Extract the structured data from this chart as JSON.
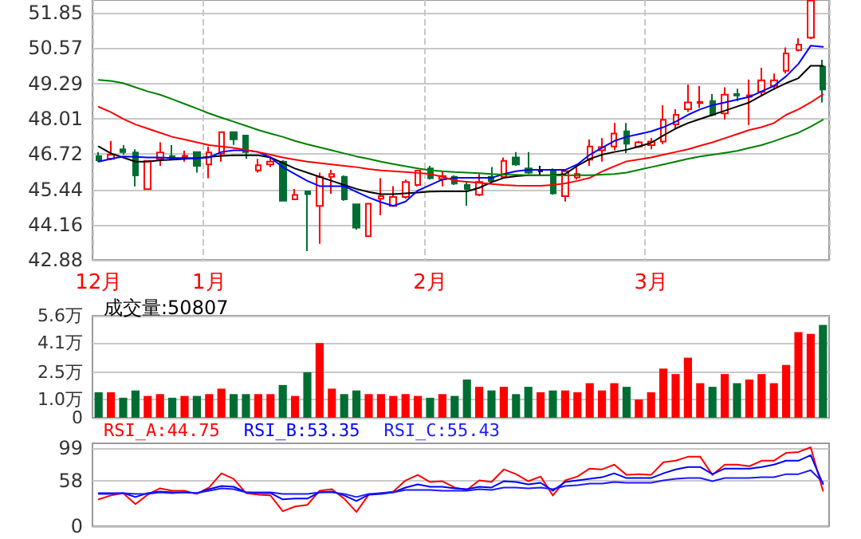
{
  "chart_data": [
    {
      "type": "candlestick",
      "categories": [
        "12月",
        null,
        null,
        null,
        null,
        null,
        null,
        null,
        null,
        "1月",
        null,
        null,
        null,
        null,
        null,
        null,
        null,
        null,
        null,
        null,
        null,
        null,
        null,
        null,
        null,
        null,
        null,
        "2月",
        null,
        null,
        null,
        null,
        null,
        null,
        null,
        null,
        null,
        null,
        null,
        null,
        null,
        null,
        null,
        null,
        null,
        "3月",
        null,
        null,
        null,
        null,
        null,
        null,
        null,
        null,
        null,
        null,
        null,
        null,
        null,
        null
      ],
      "ohlc": [
        [
          46.65,
          46.8,
          46.45,
          46.5
        ],
        [
          46.55,
          47.2,
          46.5,
          46.7
        ],
        [
          46.9,
          47.05,
          46.7,
          46.8
        ],
        [
          46.78,
          46.9,
          45.55,
          45.95
        ],
        [
          45.45,
          46.5,
          45.45,
          46.48
        ],
        [
          46.55,
          47.15,
          46.3,
          46.78
        ],
        [
          46.65,
          47.05,
          46.5,
          46.55
        ],
        [
          46.6,
          46.85,
          46.45,
          46.66
        ],
        [
          46.8,
          46.8,
          46.05,
          46.3
        ],
        [
          46.35,
          47.0,
          45.85,
          46.78
        ],
        [
          46.74,
          47.52,
          46.45,
          47.52
        ],
        [
          47.52,
          47.52,
          47.06,
          47.26
        ],
        [
          47.4,
          47.4,
          46.55,
          46.8
        ],
        [
          46.13,
          46.55,
          46.05,
          46.32
        ],
        [
          46.35,
          46.65,
          46.25,
          46.45
        ],
        [
          46.45,
          46.5,
          45.03,
          45.03
        ],
        [
          45.08,
          45.46,
          45.08,
          45.24
        ],
        [
          45.37,
          45.37,
          43.2,
          45.27
        ],
        [
          44.84,
          46.05,
          43.47,
          45.9
        ],
        [
          45.9,
          46.15,
          45.28,
          46.0
        ],
        [
          45.9,
          45.95,
          45.03,
          45.08
        ],
        [
          44.9,
          44.9,
          43.98,
          44.05
        ],
        [
          43.74,
          44.92,
          43.74,
          44.92
        ],
        [
          45.1,
          45.85,
          44.5,
          45.2
        ],
        [
          44.84,
          45.56,
          44.84,
          45.17
        ],
        [
          45.17,
          45.8,
          45.1,
          45.71
        ],
        [
          45.6,
          46.14,
          45.55,
          46.12
        ],
        [
          46.2,
          46.3,
          45.8,
          45.85
        ],
        [
          45.82,
          46.1,
          45.55,
          45.93
        ],
        [
          45.9,
          45.95,
          45.6,
          45.65
        ],
        [
          45.6,
          45.7,
          44.85,
          45.46
        ],
        [
          45.25,
          46.0,
          45.2,
          45.71
        ],
        [
          45.9,
          46.25,
          45.7,
          45.75
        ],
        [
          45.9,
          46.6,
          45.85,
          46.48
        ],
        [
          46.6,
          46.8,
          46.3,
          46.35
        ],
        [
          46.2,
          46.8,
          46.0,
          46.05
        ],
        [
          46.1,
          46.3,
          45.98,
          46.1
        ],
        [
          46.1,
          46.2,
          45.25,
          45.3
        ],
        [
          45.2,
          46.15,
          45.0,
          46.1
        ],
        [
          45.88,
          46.25,
          45.8,
          46.0
        ],
        [
          46.52,
          47.25,
          46.3,
          47.0
        ],
        [
          46.86,
          47.3,
          46.45,
          46.98
        ],
        [
          47.0,
          47.85,
          46.86,
          47.47
        ],
        [
          47.55,
          47.85,
          46.76,
          47.1
        ],
        [
          47.0,
          47.2,
          46.95,
          47.15
        ],
        [
          47.05,
          47.31,
          46.9,
          47.18
        ],
        [
          47.18,
          48.5,
          47.08,
          47.97
        ],
        [
          47.8,
          48.35,
          47.65,
          48.15
        ],
        [
          48.35,
          49.25,
          48.25,
          48.6
        ],
        [
          48.58,
          49.2,
          48.4,
          48.62
        ],
        [
          48.65,
          48.9,
          48.1,
          48.15
        ],
        [
          48.2,
          49.15,
          47.98,
          48.88
        ],
        [
          48.9,
          49.1,
          48.65,
          48.85
        ],
        [
          48.8,
          49.43,
          47.78,
          48.86
        ],
        [
          48.98,
          49.86,
          48.86,
          49.4
        ],
        [
          49.2,
          49.65,
          49.06,
          49.4
        ],
        [
          49.75,
          50.6,
          49.65,
          50.38
        ],
        [
          50.5,
          50.93,
          50.45,
          50.7
        ],
        [
          50.95,
          52.3,
          50.9,
          52.3
        ],
        [
          49.9,
          50.15,
          48.6,
          49.07
        ]
      ],
      "colors": [
        "#006e33",
        "#ff0000",
        "#006e33",
        "#006e33",
        "#ff0000",
        "#ff0000",
        "#006e33",
        "#ff0000",
        "#006e33",
        "#ff0000",
        "#ff0000",
        "#006e33",
        "#006e33",
        "#ff0000",
        "#ff0000",
        "#006e33",
        "#ff0000",
        "#006e33",
        "#ff0000",
        "#ff0000",
        "#006e33",
        "#006e33",
        "#ff0000",
        "#ff0000",
        "#ff0000",
        "#ff0000",
        "#ff0000",
        "#006e33",
        "#ff0000",
        "#006e33",
        "#006e33",
        "#ff0000",
        "#006e33",
        "#ff0000",
        "#006e33",
        "#006e33",
        "#000000",
        "#006e33",
        "#ff0000",
        "#ff0000",
        "#ff0000",
        "#ff0000",
        "#ff0000",
        "#006e33",
        "#ff0000",
        "#ff0000",
        "#ff0000",
        "#ff0000",
        "#ff0000",
        "#ff0000",
        "#006e33",
        "#ff0000",
        "#006e33",
        "#ff0000",
        "#ff0000",
        "#ff0000",
        "#ff0000",
        "#ff0000",
        "#ff0000",
        "#006e33"
      ],
      "series": [
        {
          "type": "line",
          "color": "#000000",
          "values": [
            47.0,
            46.75,
            46.6,
            46.45,
            46.45,
            46.5,
            46.52,
            46.55,
            46.58,
            46.62,
            46.66,
            46.68,
            46.68,
            46.68,
            46.6,
            46.4,
            46.2,
            46.05,
            45.9,
            45.75,
            45.6,
            45.46,
            45.35,
            45.27,
            45.27,
            45.3,
            45.33,
            45.36,
            45.37,
            45.37,
            45.37,
            45.5,
            45.7,
            45.86,
            45.92,
            45.96,
            45.96,
            45.96,
            46.0,
            46.3,
            46.55,
            46.7,
            46.8,
            46.88,
            47.0,
            47.13,
            47.4,
            47.65,
            47.85,
            48.0,
            48.15,
            48.3,
            48.45,
            48.6,
            48.85,
            49.09,
            49.3,
            49.48,
            49.93,
            49.93
          ]
        },
        {
          "type": "line",
          "color": "#0000ff",
          "values": [
            46.45,
            46.55,
            46.64,
            46.62,
            46.6,
            46.6,
            46.58,
            46.58,
            46.57,
            46.6,
            46.8,
            46.86,
            46.86,
            46.8,
            46.6,
            46.25,
            46.0,
            45.75,
            45.56,
            45.56,
            45.56,
            45.35,
            45.15,
            44.98,
            44.84,
            45.0,
            45.4,
            45.6,
            45.8,
            45.86,
            45.86,
            45.86,
            45.86,
            46.0,
            46.1,
            46.15,
            46.15,
            46.15,
            46.15,
            46.35,
            46.7,
            46.95,
            47.2,
            47.35,
            47.45,
            47.55,
            47.7,
            47.9,
            48.15,
            48.35,
            48.5,
            48.6,
            48.7,
            48.8,
            49.0,
            49.2,
            49.55,
            50.0,
            50.66,
            50.62
          ]
        },
        {
          "type": "line",
          "color": "#ff0000",
          "values": [
            48.44,
            48.25,
            48.0,
            47.8,
            47.65,
            47.5,
            47.35,
            47.25,
            47.15,
            47.05,
            47.0,
            46.95,
            46.88,
            46.8,
            46.7,
            46.6,
            46.52,
            46.45,
            46.4,
            46.35,
            46.3,
            46.25,
            46.18,
            46.13,
            46.1,
            46.07,
            46.04,
            46.0,
            45.9,
            45.76,
            45.72,
            45.68,
            45.64,
            45.6,
            45.58,
            45.57,
            45.57,
            45.6,
            45.66,
            45.75,
            45.86,
            46.09,
            46.28,
            46.46,
            46.53,
            46.6,
            46.7,
            46.8,
            46.9,
            47.03,
            47.15,
            47.3,
            47.45,
            47.6,
            47.7,
            47.85,
            48.15,
            48.35,
            48.6,
            48.89
          ]
        },
        {
          "type": "line",
          "color": "#008000",
          "values": [
            49.42,
            49.38,
            49.3,
            49.15,
            49.0,
            48.88,
            48.72,
            48.55,
            48.38,
            48.2,
            48.05,
            47.9,
            47.75,
            47.6,
            47.47,
            47.35,
            47.2,
            47.08,
            46.97,
            46.86,
            46.75,
            46.64,
            46.55,
            46.45,
            46.36,
            46.28,
            46.2,
            46.14,
            46.1,
            46.07,
            46.05,
            46.03,
            46.0,
            45.98,
            45.97,
            45.96,
            45.95,
            45.95,
            45.95,
            45.96,
            45.96,
            45.98,
            46.0,
            46.05,
            46.15,
            46.25,
            46.35,
            46.45,
            46.55,
            46.64,
            46.7,
            46.77,
            46.84,
            46.95,
            47.05,
            47.19,
            47.35,
            47.5,
            47.72,
            47.97
          ]
        }
      ],
      "marker": "none",
      "ylim": [
        42.88,
        52.32
      ],
      "yticks": [
        42.88,
        44.16,
        45.44,
        46.72,
        48.01,
        49.29,
        50.57,
        51.85
      ],
      "grid": true
    },
    {
      "type": "bar",
      "title": "成交量:50807",
      "categories": [
        null,
        null,
        null,
        null,
        null,
        null,
        null,
        null,
        null,
        null,
        null,
        null,
        null,
        null,
        null,
        null,
        null,
        null,
        null,
        null,
        null,
        null,
        null,
        null,
        null,
        null,
        null,
        null,
        null,
        null,
        null,
        null,
        null,
        null,
        null,
        null,
        null,
        null,
        null,
        null,
        null,
        null,
        null,
        null,
        null,
        null,
        null,
        null,
        null,
        null,
        null,
        null,
        null,
        null,
        null,
        null,
        null,
        null,
        null,
        null
      ],
      "values": [
        1.4,
        1.4,
        1.1,
        1.5,
        1.2,
        1.3,
        1.1,
        1.2,
        1.2,
        1.3,
        1.6,
        1.3,
        1.3,
        1.3,
        1.3,
        1.8,
        1.2,
        2.5,
        4.1,
        1.6,
        1.3,
        1.5,
        1.3,
        1.3,
        1.2,
        1.3,
        1.2,
        1.1,
        1.3,
        1.2,
        2.1,
        1.7,
        1.5,
        1.7,
        1.3,
        1.7,
        1.4,
        1.5,
        1.5,
        1.4,
        1.9,
        1.5,
        1.9,
        1.7,
        1.0,
        1.4,
        2.7,
        2.4,
        3.3,
        1.9,
        1.7,
        2.4,
        1.9,
        2.1,
        2.4,
        1.9,
        2.9,
        4.7,
        4.6,
        5.1
      ],
      "colors": [
        "#006e33",
        "#ff0000",
        "#006e33",
        "#006e33",
        "#ff0000",
        "#ff0000",
        "#006e33",
        "#ff0000",
        "#006e33",
        "#ff0000",
        "#ff0000",
        "#006e33",
        "#006e33",
        "#ff0000",
        "#ff0000",
        "#006e33",
        "#ff0000",
        "#006e33",
        "#ff0000",
        "#ff0000",
        "#006e33",
        "#006e33",
        "#ff0000",
        "#ff0000",
        "#ff0000",
        "#ff0000",
        "#ff0000",
        "#006e33",
        "#ff0000",
        "#006e33",
        "#006e33",
        "#ff0000",
        "#006e33",
        "#ff0000",
        "#006e33",
        "#006e33",
        "#ff0000",
        "#006e33",
        "#ff0000",
        "#ff0000",
        "#ff0000",
        "#ff0000",
        "#ff0000",
        "#006e33",
        "#ff0000",
        "#ff0000",
        "#ff0000",
        "#ff0000",
        "#ff0000",
        "#ff0000",
        "#006e33",
        "#ff0000",
        "#006e33",
        "#ff0000",
        "#ff0000",
        "#ff0000",
        "#ff0000",
        "#ff0000",
        "#ff0000",
        "#006e33"
      ],
      "ylim": [
        0,
        5.6
      ],
      "yticks": [
        0,
        {
          "value": 1.0,
          "label": "1.0万"
        },
        {
          "value": 2.5,
          "label": "2.5万"
        },
        {
          "value": 4.1,
          "label": "4.1万"
        },
        {
          "value": 5.6,
          "label": "5.6万"
        }
      ],
      "grid": "y",
      "tick_labels": "y"
    },
    {
      "type": "line",
      "categories": [
        null,
        null,
        null,
        null,
        null,
        null,
        null,
        null,
        null,
        null,
        null,
        null,
        null,
        null,
        null,
        null,
        null,
        null,
        null,
        null,
        null,
        null,
        null,
        null,
        null,
        null,
        null,
        null,
        null,
        null,
        null,
        null,
        null,
        null,
        null,
        null,
        null,
        null,
        null,
        null,
        null,
        null,
        null,
        null,
        null,
        null,
        null,
        null,
        null,
        null,
        null,
        null,
        null,
        null,
        null,
        null,
        null,
        null,
        null,
        null
      ],
      "series": [
        {
          "name": "RSI_A:44.75",
          "color": "#ff0000",
          "values": [
            34,
            39,
            42,
            28,
            40,
            48,
            45,
            45,
            41,
            49,
            67,
            60,
            42,
            40,
            39,
            19,
            25,
            27,
            45,
            47,
            35,
            18,
            40,
            42,
            44,
            58,
            65,
            56,
            57,
            49,
            46,
            58,
            56,
            72,
            66,
            57,
            63,
            39,
            58,
            63,
            73,
            72,
            78,
            65,
            66,
            65,
            81,
            83,
            88,
            88,
            65,
            78,
            78,
            76,
            83,
            83,
            93,
            94,
            100,
            44.75
          ]
        },
        {
          "name": "RSI_B:53.35",
          "color": "#0000ff",
          "values": [
            42,
            42,
            42,
            37,
            42,
            44,
            43,
            43,
            42,
            47,
            51,
            50,
            43,
            42,
            42,
            34,
            35,
            35,
            43,
            44,
            39,
            32,
            40,
            41,
            43,
            49,
            53,
            50,
            50,
            48,
            47,
            50,
            49,
            57,
            56,
            53,
            55,
            45,
            56,
            58,
            60,
            62,
            67,
            61,
            61,
            61,
            67,
            72,
            75,
            75,
            66,
            73,
            73,
            73,
            75,
            78,
            83,
            83,
            90,
            53.35
          ]
        },
        {
          "name": "RSI_C:55.43",
          "color": "#1a1aff",
          "values": [
            41,
            41,
            42,
            41,
            41,
            43,
            42,
            43,
            42,
            45,
            48,
            47,
            43,
            43,
            43,
            41,
            41,
            41,
            43,
            43,
            41,
            37,
            41,
            42,
            43,
            46,
            46,
            46,
            45,
            45,
            45,
            47,
            46,
            49,
            49,
            48,
            49,
            47,
            51,
            52,
            54,
            54,
            56,
            55,
            55,
            55,
            58,
            60,
            61,
            61,
            57,
            61,
            61,
            61,
            62,
            62,
            66,
            66,
            71,
            55.43
          ]
        }
      ],
      "marker": "none",
      "legend": "top left",
      "ylim": [
        0,
        105
      ],
      "yticks": [
        0,
        58,
        99
      ],
      "grid": "y",
      "tick_labels": "y"
    }
  ]
}
